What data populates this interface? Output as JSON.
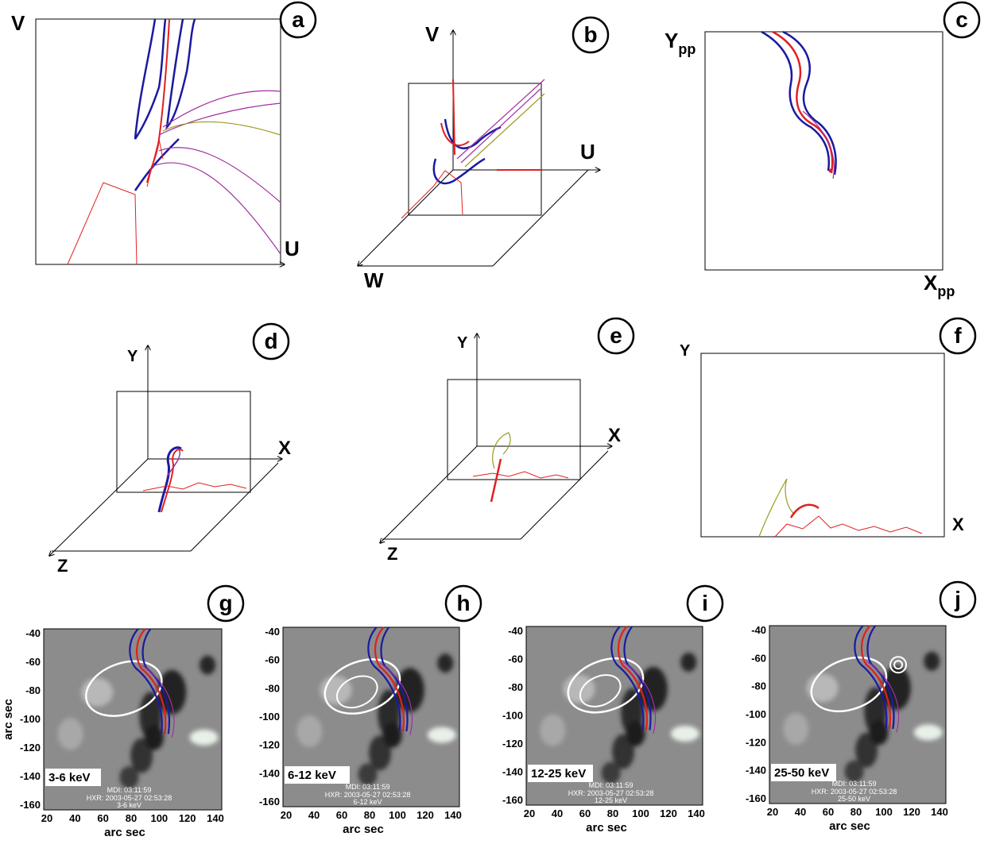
{
  "panels": {
    "a": {
      "letter": "a",
      "axes": {
        "v": "V",
        "u": "U"
      }
    },
    "b": {
      "letter": "b",
      "axes": {
        "v": "V",
        "u": "U",
        "w": "W"
      }
    },
    "c": {
      "letter": "c",
      "axes": {
        "y": "Y",
        "y_sub": "pp",
        "x": "X",
        "x_sub": "pp"
      }
    },
    "d": {
      "letter": "d",
      "axes": {
        "y": "Y",
        "x": "X",
        "z": "Z"
      }
    },
    "e": {
      "letter": "e",
      "axes": {
        "y": "Y",
        "x": "X",
        "z": "Z"
      }
    },
    "f": {
      "letter": "f",
      "axes": {
        "y": "Y",
        "x": "X"
      }
    },
    "maps": [
      {
        "letter": "g",
        "band": "3-6 keV",
        "mdi": "MDI: 03:11:59",
        "hxr": "HXR: 2003-05-27  02:53:28",
        "sub": "3-6 keV"
      },
      {
        "letter": "h",
        "band": "6-12 keV",
        "mdi": "MDI: 03:11:59",
        "hxr": "HXR: 2003-05-27  02:53:28",
        "sub": "6-12 keV"
      },
      {
        "letter": "i",
        "band": "12-25 keV",
        "mdi": "MDI: 03:11:59",
        "hxr": "HXR: 2003-05-27  02:53:28",
        "sub": "12-25 keV"
      },
      {
        "letter": "j",
        "band": "25-50 keV",
        "mdi": "MDI: 03:11:59",
        "hxr": "HXR: 2003-05-27  02:53:28",
        "sub": "25-50 keV"
      }
    ]
  },
  "map_axes": {
    "xlabel": "arc sec",
    "ylabel": "arc sec",
    "xticks": [
      "20",
      "40",
      "60",
      "80",
      "100",
      "120",
      "140"
    ],
    "yticks": [
      "-40",
      "-60",
      "-80",
      "-100",
      "-120",
      "-140",
      "-160"
    ]
  },
  "colors": {
    "field_line_blue": "#1a1aa0",
    "field_line_red": "#e02020",
    "field_line_purple": "#a030a0",
    "field_line_olive": "#9a9a20",
    "contour": "#ffffff"
  }
}
